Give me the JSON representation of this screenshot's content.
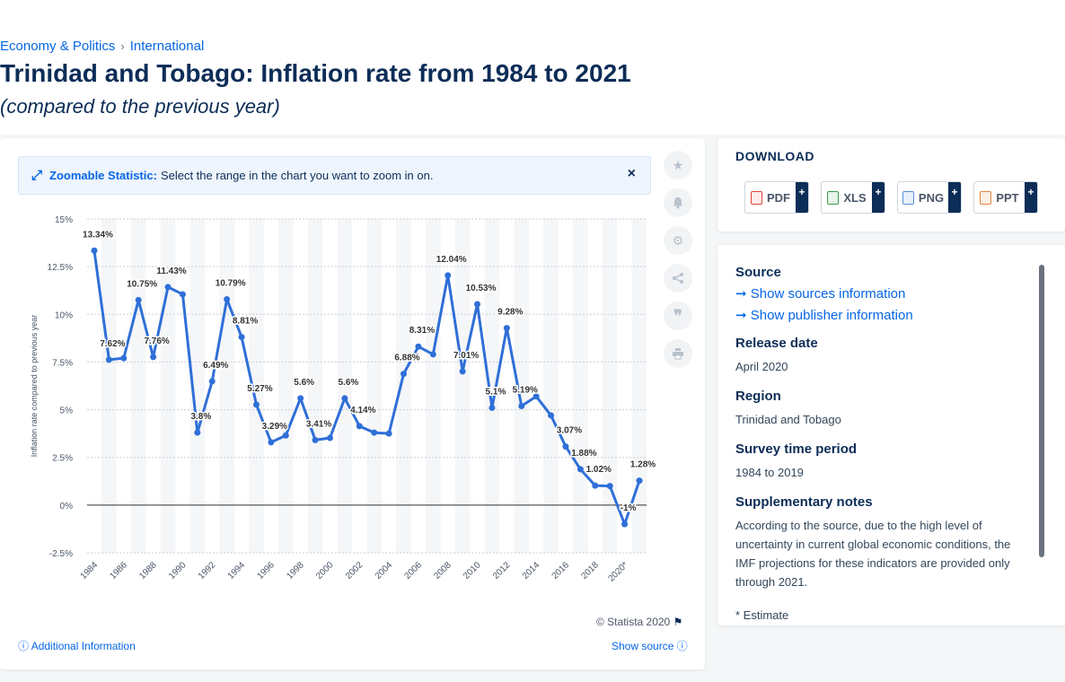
{
  "breadcrumb": {
    "item1": "Economy & Politics",
    "separator": "›",
    "item2": "International"
  },
  "header": {
    "title": "Trinidad and Tobago: Inflation rate from 1984 to 2021",
    "subtitle": "(compared to the previous year)"
  },
  "zoom_banner": {
    "bold": "Zoomable Statistic:",
    "text": "Select the range in the chart you want to zoom in on.",
    "close": "×"
  },
  "chart_footer": {
    "copyright": "© Statista 2020",
    "additional_info": "Additional Information",
    "show_source": "Show source"
  },
  "download": {
    "title": "DOWNLOAD",
    "buttons": [
      {
        "label": "PDF",
        "color": "#e0453a"
      },
      {
        "label": "XLS",
        "color": "#3c9a4b"
      },
      {
        "label": "PNG",
        "color": "#5a8fd6"
      },
      {
        "label": "PPT",
        "color": "#e8833a"
      }
    ],
    "plus": "+"
  },
  "info": {
    "source_label": "Source",
    "show_sources": "Show sources information",
    "show_publisher": "Show publisher information",
    "release_label": "Release date",
    "release_value": "April 2020",
    "region_label": "Region",
    "region_value": "Trinidad and Tobago",
    "period_label": "Survey time period",
    "period_value": "1984 to 2019",
    "notes_label": "Supplementary notes",
    "notes_value": "According to the source, due to the high level of uncertainty in current global economic conditions, the IMF projections for these indicators are provided only through 2021.",
    "estimate_note": "* Estimate"
  },
  "colors": {
    "line": "#2f6fd8",
    "accent": "#0666e5",
    "title": "#0c2d57"
  },
  "chart_data": {
    "type": "line",
    "ylabel": "Inflation rate compared to previous year",
    "ylim": [
      -2.5,
      15
    ],
    "yticks": [
      -2.5,
      0,
      2.5,
      5,
      7.5,
      10,
      12.5,
      15
    ],
    "ytick_labels": [
      "-2.5%",
      "0%",
      "2.5%",
      "5%",
      "7.5%",
      "10%",
      "12.5%",
      "15%"
    ],
    "xtick_labels": [
      "1984",
      "1986",
      "1988",
      "1990",
      "1992",
      "1994",
      "1996",
      "1998",
      "2000",
      "2002",
      "2004",
      "2006",
      "2008",
      "2010",
      "2012",
      "2014",
      "2016",
      "2018",
      "2020*"
    ],
    "grid": true,
    "x": [
      1984,
      1985,
      1986,
      1987,
      1988,
      1989,
      1990,
      1991,
      1992,
      1993,
      1994,
      1995,
      1996,
      1997,
      1998,
      1999,
      2000,
      2001,
      2002,
      2003,
      2004,
      2005,
      2006,
      2007,
      2008,
      2009,
      2010,
      2011,
      2012,
      2013,
      2014,
      2015,
      2016,
      2017,
      2018,
      2019,
      2020,
      2021
    ],
    "values": [
      13.34,
      7.62,
      7.7,
      10.75,
      7.76,
      11.43,
      11.05,
      3.8,
      6.49,
      10.79,
      8.81,
      5.27,
      3.29,
      3.65,
      5.6,
      3.41,
      3.52,
      5.6,
      4.14,
      3.8,
      3.75,
      6.88,
      8.31,
      7.9,
      12.04,
      7.01,
      10.53,
      5.1,
      9.28,
      5.19,
      5.7,
      4.7,
      3.07,
      1.88,
      1.02,
      1.0,
      -1.0,
      1.28
    ],
    "labels": [
      {
        "x": 1984,
        "text": "13.34%"
      },
      {
        "x": 1985,
        "text": "7.62%"
      },
      {
        "x": 1987,
        "text": "10.75%"
      },
      {
        "x": 1988,
        "text": "7.76%"
      },
      {
        "x": 1989,
        "text": "11.43%"
      },
      {
        "x": 1991,
        "text": "3.8%"
      },
      {
        "x": 1992,
        "text": "6.49%"
      },
      {
        "x": 1993,
        "text": "10.79%"
      },
      {
        "x": 1994,
        "text": "8.81%"
      },
      {
        "x": 1995,
        "text": "5.27%"
      },
      {
        "x": 1996,
        "text": "3.29%"
      },
      {
        "x": 1998,
        "text": "5.6%"
      },
      {
        "x": 1999,
        "text": "3.41%"
      },
      {
        "x": 2001,
        "text": "5.6%"
      },
      {
        "x": 2002,
        "text": "4.14%"
      },
      {
        "x": 2005,
        "text": "6.88%"
      },
      {
        "x": 2006,
        "text": "8.31%"
      },
      {
        "x": 2008,
        "text": "12.04%"
      },
      {
        "x": 2009,
        "text": "7.01%"
      },
      {
        "x": 2010,
        "text": "10.53%"
      },
      {
        "x": 2011,
        "text": "5.1%"
      },
      {
        "x": 2012,
        "text": "9.28%"
      },
      {
        "x": 2013,
        "text": "5.19%"
      },
      {
        "x": 2016,
        "text": "3.07%"
      },
      {
        "x": 2017,
        "text": "1.88%"
      },
      {
        "x": 2018,
        "text": "1.02%"
      },
      {
        "x": 2020,
        "text": "-1%"
      },
      {
        "x": 2021,
        "text": "1.28%"
      }
    ]
  }
}
